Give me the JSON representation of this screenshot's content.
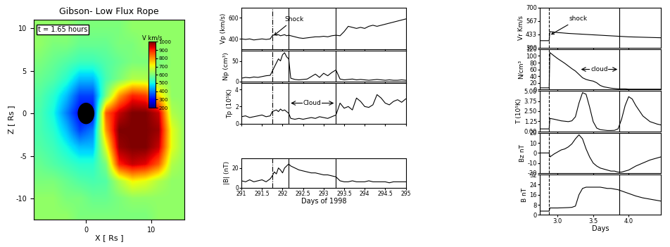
{
  "chart_data": [
    {
      "type": "heatmap",
      "title": "Gibson- Low Flux Rope",
      "annotation": "t = 1.65 hours",
      "x_label": "X [ Rs ]",
      "y_label": "Z [ Rs ]",
      "x_edges": [
        -8,
        -6,
        -4,
        -2,
        0,
        2,
        4,
        6,
        8,
        10,
        12,
        14,
        16
      ],
      "y_edges": [
        -13,
        -11,
        -9,
        -7,
        -5,
        -3,
        -1,
        1,
        3,
        5,
        7,
        9,
        11
      ],
      "cells": [
        [
          620,
          620,
          620,
          600,
          600,
          600,
          600,
          600,
          600,
          620,
          620,
          620
        ],
        [
          620,
          620,
          600,
          600,
          580,
          580,
          600,
          620,
          620,
          620,
          620,
          620
        ],
        [
          600,
          600,
          580,
          560,
          550,
          560,
          650,
          720,
          700,
          650,
          620,
          620
        ],
        [
          580,
          560,
          540,
          520,
          520,
          600,
          900,
          950,
          930,
          850,
          650,
          620
        ],
        [
          560,
          540,
          500,
          450,
          450,
          700,
          980,
          1000,
          1000,
          950,
          700,
          620
        ],
        [
          550,
          520,
          450,
          350,
          400,
          800,
          1000,
          1000,
          1000,
          980,
          700,
          620
        ],
        [
          550,
          500,
          400,
          300,
          300,
          850,
          950,
          1000,
          1000,
          950,
          650,
          620
        ],
        [
          560,
          520,
          450,
          350,
          350,
          600,
          800,
          900,
          880,
          750,
          620,
          620
        ],
        [
          580,
          560,
          520,
          450,
          450,
          550,
          600,
          650,
          650,
          620,
          620,
          620
        ],
        [
          600,
          580,
          560,
          540,
          540,
          560,
          580,
          600,
          600,
          600,
          620,
          620
        ],
        [
          620,
          600,
          600,
          580,
          580,
          580,
          600,
          600,
          620,
          620,
          620,
          620
        ],
        [
          620,
          620,
          620,
          600,
          600,
          600,
          600,
          620,
          620,
          620,
          620,
          620
        ]
      ],
      "xlim": [
        -8,
        15
      ],
      "ylim": [
        -12.5,
        11
      ],
      "xticks": [
        0,
        10
      ],
      "yticks": [
        -10,
        -5,
        0,
        5,
        10
      ],
      "colorbar": {
        "label": "V km/s",
        "range": [
          200,
          1000
        ],
        "ticks": [
          200,
          300,
          400,
          500,
          600,
          700,
          800,
          900,
          1000
        ]
      },
      "sun": {
        "x": 0,
        "y": 0,
        "radius": 1.2
      }
    },
    {
      "type": "line",
      "color": "#000000",
      "x_label": "Days of 1998",
      "xlim": [
        291,
        295
      ],
      "xticks": [
        291,
        291.5,
        292,
        292.5,
        293,
        293.5,
        294,
        294.5,
        295
      ],
      "x": [
        291.0,
        291.1,
        291.2,
        291.3,
        291.4,
        291.5,
        291.6,
        291.7,
        291.75,
        291.8,
        291.85,
        291.9,
        291.95,
        292.0,
        292.05,
        292.1,
        292.15,
        292.2,
        292.3,
        292.4,
        292.5,
        292.6,
        292.7,
        292.8,
        292.9,
        293.0,
        293.1,
        293.2,
        293.3,
        293.4,
        293.5,
        293.6,
        293.7,
        293.8,
        293.9,
        294.0,
        294.1,
        294.2,
        294.3,
        294.4,
        294.5,
        294.6,
        294.7,
        294.8,
        294.9,
        295.0
      ],
      "vlines": [
        {
          "x": 291.75,
          "line_style": "dashdot"
        },
        {
          "x": 292.15,
          "line_style": "solid"
        },
        {
          "x": 293.3,
          "line_style": "solid"
        }
      ],
      "panels": [
        {
          "y_label": "Vp (km/s)",
          "ylim": [
            300,
            700
          ],
          "yticks": [
            400,
            600
          ],
          "values": [
            400,
            395,
            400,
            390,
            395,
            400,
            395,
            400,
            430,
            440,
            435,
            440,
            430,
            435,
            440,
            430,
            435,
            430,
            420,
            410,
            405,
            410,
            415,
            420,
            420,
            425,
            420,
            430,
            435,
            430,
            470,
            520,
            510,
            500,
            510,
            500,
            520,
            530,
            520,
            530,
            540,
            550,
            560,
            570,
            580,
            590
          ],
          "annotation": {
            "text": "Shock",
            "x": 291.75
          }
        },
        {
          "y_label": "Np (cm³)",
          "ylim": [
            0,
            75
          ],
          "yticks": [
            0,
            50
          ],
          "values": [
            8,
            10,
            9,
            11,
            10,
            12,
            14,
            15,
            25,
            35,
            45,
            55,
            50,
            65,
            70,
            60,
            55,
            8,
            5,
            4,
            5,
            6,
            12,
            18,
            10,
            20,
            14,
            22,
            28,
            6,
            4,
            5,
            6,
            4,
            5,
            4,
            3,
            4,
            5,
            4,
            3,
            4,
            3,
            3,
            4,
            3
          ]
        },
        {
          "y_label": "Tp (10⁵K)",
          "ylim": [
            0,
            4.8
          ],
          "yticks": [
            0,
            2,
            4
          ],
          "values": [
            0.8,
            0.9,
            0.7,
            0.8,
            0.9,
            1.0,
            0.8,
            0.9,
            1.4,
            1.5,
            1.6,
            1.4,
            1.7,
            1.5,
            1.6,
            1.4,
            1.2,
            0.6,
            0.5,
            0.6,
            0.5,
            0.6,
            0.7,
            0.6,
            0.8,
            0.7,
            0.6,
            0.8,
            1.0,
            2.4,
            1.8,
            2.0,
            1.6,
            3.0,
            2.6,
            2.0,
            1.9,
            2.2,
            3.4,
            3.0,
            2.4,
            2.2,
            2.6,
            2.8,
            2.5,
            2.9
          ],
          "annotation": {
            "text": "Cloud",
            "x": [
              292.15,
              293.3
            ]
          }
        },
        {
          "y_label": "|B| (nT)",
          "ylim": [
            0,
            30
          ],
          "yticks": [
            0,
            20
          ],
          "values": [
            7,
            6,
            8,
            6,
            7,
            8,
            6,
            9,
            12,
            16,
            14,
            20,
            18,
            15,
            20,
            22,
            24,
            22,
            20,
            18,
            17,
            16,
            15,
            15,
            14,
            13,
            13,
            12,
            11,
            7,
            6,
            6,
            7,
            6,
            6,
            6,
            7,
            6,
            6,
            6,
            6,
            5,
            6,
            6,
            6,
            6
          ]
        }
      ]
    },
    {
      "type": "line",
      "color": "#000000",
      "x_label": "Days",
      "xlim": [
        2.75,
        4.45
      ],
      "xticks": [
        3.0,
        3.5,
        4.0
      ],
      "x": [
        2.75,
        2.8,
        2.85,
        2.88,
        2.89,
        2.95,
        3.0,
        3.05,
        3.1,
        3.15,
        3.2,
        3.25,
        3.3,
        3.35,
        3.4,
        3.45,
        3.5,
        3.55,
        3.6,
        3.65,
        3.7,
        3.75,
        3.8,
        3.85,
        3.9,
        3.95,
        4.0,
        4.05,
        4.1,
        4.2,
        4.3,
        4.4,
        4.45
      ],
      "vlines": [
        {
          "x": 2.88,
          "line_style": "dashed"
        },
        {
          "x": 3.87,
          "line_style": "solid"
        }
      ],
      "panels": [
        {
          "y_label": "Vr Km/s",
          "ylim": [
            300,
            700
          ],
          "yticks": [
            300,
            433,
            567,
            700
          ],
          "values": [
            370,
            370,
            370,
            370,
            460,
            455,
            450,
            448,
            445,
            442,
            440,
            438,
            436,
            434,
            432,
            430,
            428,
            426,
            424,
            422,
            420,
            418,
            416,
            414,
            412,
            410,
            408,
            407,
            406,
            404,
            402,
            400,
            399
          ],
          "annotation": {
            "text": "shock",
            "x": 2.88
          }
        },
        {
          "y_label": "N/cm³",
          "ylim": [
            0,
            120
          ],
          "yticks": [
            0,
            20,
            40,
            60,
            80,
            100,
            120
          ],
          "values": [
            5,
            5,
            5,
            5,
            110,
            100,
            92,
            85,
            78,
            70,
            62,
            55,
            45,
            35,
            30,
            27,
            25,
            20,
            12,
            8,
            6,
            4,
            3,
            2,
            2,
            2,
            1,
            1,
            1,
            1,
            1,
            1,
            1
          ],
          "annotation": {
            "text": "cloud",
            "x": [
              3.3,
              3.87
            ]
          }
        },
        {
          "y_label": "T (10⁵K)",
          "ylim": [
            0,
            5
          ],
          "yticks": [
            {
              "value": 0,
              "label": "0.00"
            },
            1.25,
            {
              "value": 2.5,
              "label": "2.50"
            },
            3.75,
            {
              "value": 5,
              "label": "5.00"
            }
          ],
          "values": [
            0.3,
            0.3,
            0.3,
            0.3,
            1.6,
            1.5,
            1.4,
            1.3,
            1.25,
            1.2,
            1.3,
            1.8,
            3.5,
            4.8,
            4.6,
            3.0,
            1.2,
            0.4,
            0.2,
            0.15,
            0.1,
            0.1,
            0.12,
            0.3,
            1.5,
            3.2,
            4.3,
            4.0,
            3.2,
            1.9,
            1.2,
            0.9,
            0.8
          ]
        },
        {
          "y_label": "Bz nT",
          "ylim": [
            -20,
            20
          ],
          "yticks": [
            -20,
            -10,
            0,
            10,
            20
          ],
          "values": [
            0,
            0,
            0,
            0,
            -4,
            -1,
            1,
            3,
            4,
            6,
            9,
            14,
            18,
            14,
            4,
            -4,
            -10,
            -13,
            -15,
            -16,
            -17,
            -18,
            -18,
            -19,
            -19,
            -18,
            -17,
            -15,
            -13,
            -10,
            -7,
            -5,
            -4
          ]
        },
        {
          "y_label": "B nT",
          "ylim": [
            0,
            32
          ],
          "yticks": [
            0,
            8,
            16,
            24,
            32
          ],
          "values": [
            3,
            3,
            3,
            3,
            5.5,
            5.5,
            5.5,
            5.6,
            5.7,
            5.8,
            6,
            7,
            16,
            21,
            22,
            22,
            22,
            22,
            22,
            21.5,
            21,
            21,
            20.5,
            20,
            19,
            18,
            17,
            16,
            15,
            13.5,
            12.5,
            11.5,
            11
          ]
        }
      ]
    }
  ]
}
